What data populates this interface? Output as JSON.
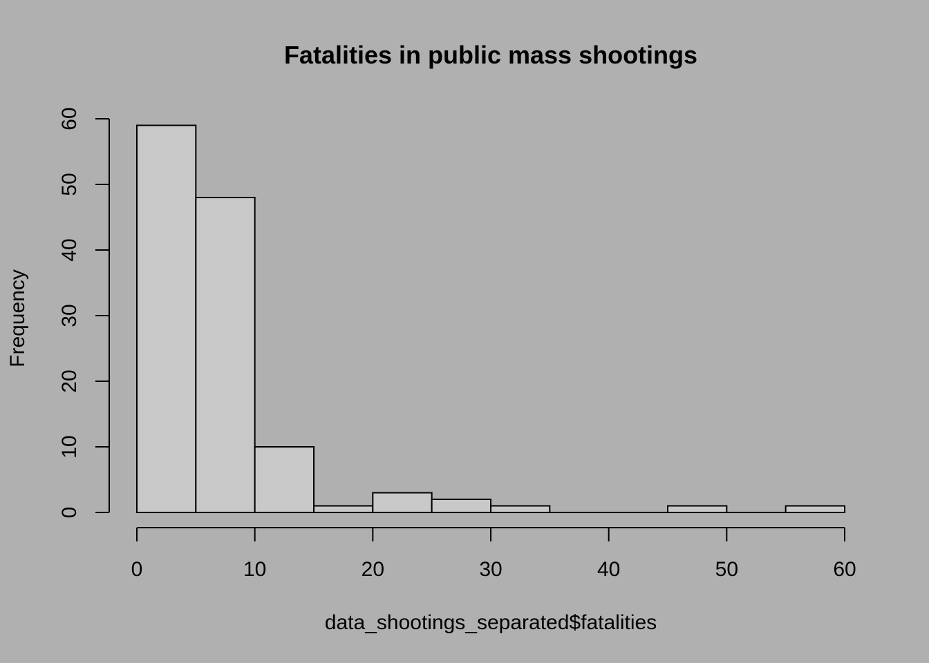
{
  "chart_data": {
    "type": "bar",
    "title": "Fatalities in public mass shootings",
    "xlabel": "data_shootings_separated$fatalities",
    "ylabel": "Frequency",
    "bin_edges": [
      0,
      5,
      10,
      15,
      20,
      25,
      30,
      35,
      40,
      45,
      50,
      55,
      60
    ],
    "values": [
      59,
      48,
      10,
      1,
      3,
      2,
      1,
      0,
      0,
      1,
      0,
      1
    ],
    "xlim": [
      0,
      60
    ],
    "ylim": [
      0,
      60
    ],
    "x_ticks": [
      0,
      10,
      20,
      30,
      40,
      50,
      60
    ],
    "x_tick_labels": [
      "0",
      "10",
      "20",
      "30",
      "40",
      "50",
      "60"
    ],
    "y_ticks": [
      0,
      10,
      20,
      30,
      40,
      50,
      60
    ],
    "y_tick_labels": [
      "0",
      "10",
      "20",
      "30",
      "40",
      "50",
      "60"
    ],
    "grid": false,
    "bar_color": "#c8c8c8",
    "background_color": "#b0b0b0"
  }
}
